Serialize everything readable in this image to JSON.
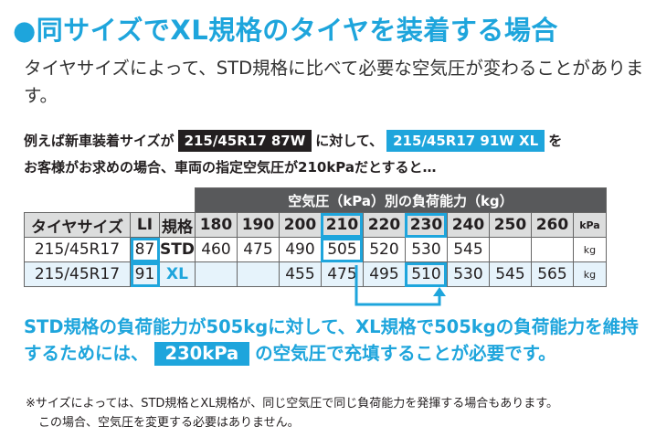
{
  "title": "●同サイズでXL規格のタイヤを装着する場合",
  "intro": "タイヤサイズによって、STD規格に比べて必要な空気圧が変わることがあります。",
  "example": {
    "prefix": "例えば新車装着サイズが",
    "std_tag": "215/45R17 87W",
    "middle": "に対して、",
    "xl_tag": "215/45R17 91W XL",
    "suffix": "を",
    "line2": "お客様がお求めの場合、車両の指定空気圧が210kPaだとすると…"
  },
  "table": {
    "caption": "空気圧（kPa）別の負荷能力（kg）",
    "headers": [
      "タイヤサイズ",
      "LI",
      "規格",
      "180",
      "190",
      "200",
      "210",
      "220",
      "230",
      "240",
      "250",
      "260",
      "kPa"
    ],
    "rows": [
      {
        "size": "215/45R17",
        "li": "87",
        "spec": "STD",
        "values": [
          "460",
          "475",
          "490",
          "505",
          "520",
          "530",
          "545",
          "",
          ""
        ],
        "unit": "kg"
      },
      {
        "size": "215/45R17",
        "li": "91",
        "spec": "XL",
        "values": [
          "",
          "",
          "455",
          "475",
          "495",
          "510",
          "530",
          "545",
          "565"
        ],
        "unit": "kg"
      }
    ]
  },
  "result": {
    "part1": "STD規格の負荷能力が505kgに対して、XL規格で505kgの負荷能力を維持するためには、",
    "pressure": "230kPa",
    "part2": "の空気圧で充填することが必要です。"
  },
  "note": {
    "line1": "※サイズによっては、STD規格とXL規格が、同じ空気圧で同じ負荷能力を発揮する場合もあります。",
    "line2": "この場合、空気圧を変更する必要はありません。"
  },
  "colors": {
    "accent": "#1ea5dc",
    "dark": "#231f20",
    "header_gray": "#58595b",
    "light_gray": "#dcdddd",
    "xl_row_bg": "#e6f3fb"
  }
}
